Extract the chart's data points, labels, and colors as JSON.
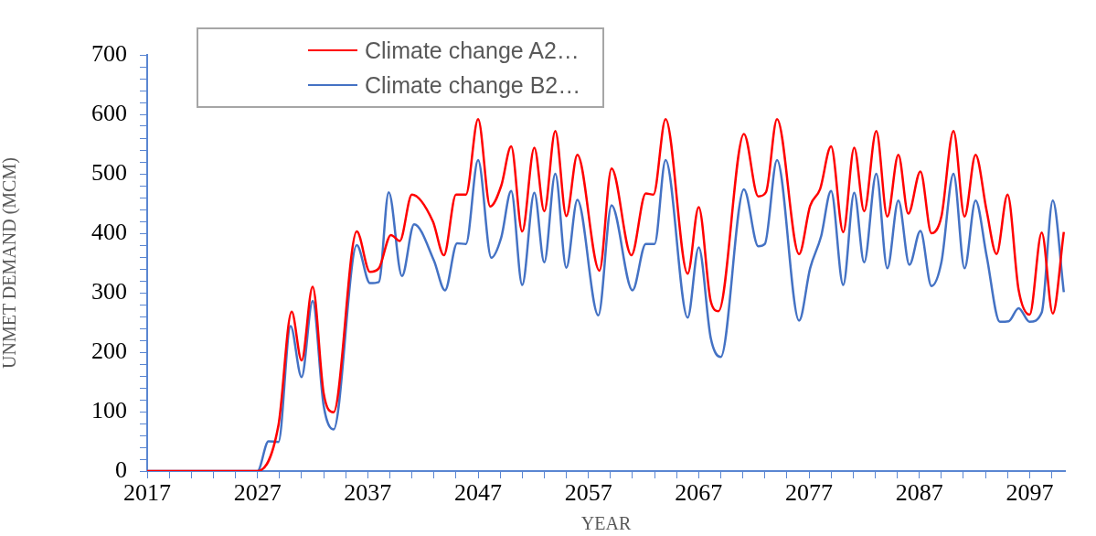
{
  "chart_data": {
    "type": "line",
    "xlabel": "YEAR",
    "ylabel": "UNMET DEMAND (MCM)",
    "xlim": [
      2017,
      2100.2
    ],
    "xticks": [
      2017,
      {
        "value": 2019,
        "label": null
      },
      {
        "value": 2021,
        "label": null
      },
      {
        "value": 2023,
        "label": null
      },
      {
        "value": 2025,
        "label": null
      },
      2027,
      {
        "value": 2029,
        "label": null
      },
      {
        "value": 2031,
        "label": null
      },
      {
        "value": 2033,
        "label": null
      },
      {
        "value": 2035,
        "label": null
      },
      2037,
      {
        "value": 2039,
        "label": null
      },
      {
        "value": 2041,
        "label": null
      },
      {
        "value": 2043,
        "label": null
      },
      {
        "value": 2045,
        "label": null
      },
      2047,
      {
        "value": 2049,
        "label": null
      },
      {
        "value": 2051,
        "label": null
      },
      {
        "value": 2053,
        "label": null
      },
      {
        "value": 2055,
        "label": null
      },
      2057,
      {
        "value": 2059,
        "label": null
      },
      {
        "value": 2061,
        "label": null
      },
      {
        "value": 2063,
        "label": null
      },
      {
        "value": 2065,
        "label": null
      },
      2067,
      {
        "value": 2069,
        "label": null
      },
      {
        "value": 2071,
        "label": null
      },
      {
        "value": 2073,
        "label": null
      },
      {
        "value": 2075,
        "label": null
      },
      2077,
      {
        "value": 2079,
        "label": null
      },
      {
        "value": 2081,
        "label": null
      },
      {
        "value": 2083,
        "label": null
      },
      {
        "value": 2085,
        "label": null
      },
      2087,
      {
        "value": 2089,
        "label": null
      },
      {
        "value": 2091,
        "label": null
      },
      {
        "value": 2093,
        "label": null
      },
      {
        "value": 2095,
        "label": null
      },
      2097,
      {
        "value": 2099,
        "label": null
      }
    ],
    "ylim": [
      0,
      700
    ],
    "yticks": [
      0,
      {
        "value": 20,
        "label": null
      },
      {
        "value": 40,
        "label": null
      },
      {
        "value": 60,
        "label": null
      },
      {
        "value": 80,
        "label": null
      },
      100,
      {
        "value": 120,
        "label": null
      },
      {
        "value": 140,
        "label": null
      },
      {
        "value": 160,
        "label": null
      },
      {
        "value": 180,
        "label": null
      },
      200,
      {
        "value": 220,
        "label": null
      },
      {
        "value": 240,
        "label": null
      },
      {
        "value": 260,
        "label": null
      },
      {
        "value": 280,
        "label": null
      },
      300,
      {
        "value": 320,
        "label": null
      },
      {
        "value": 340,
        "label": null
      },
      {
        "value": 360,
        "label": null
      },
      {
        "value": 380,
        "label": null
      },
      400,
      {
        "value": 420,
        "label": null
      },
      {
        "value": 440,
        "label": null
      },
      {
        "value": 460,
        "label": null
      },
      {
        "value": 480,
        "label": null
      },
      500,
      {
        "value": 520,
        "label": null
      },
      {
        "value": 540,
        "label": null
      },
      {
        "value": 560,
        "label": null
      },
      {
        "value": 580,
        "label": null
      },
      600,
      {
        "value": 620,
        "label": null
      },
      {
        "value": 640,
        "label": null
      },
      {
        "value": 660,
        "label": null
      },
      {
        "value": 680,
        "label": null
      },
      700
    ],
    "grid": false,
    "legend": "top left",
    "marker": "none",
    "line_style": "solid",
    "series": [
      {
        "name": "Climate change A2…",
        "color": "#ff0000",
        "x": [
          2017,
          2027,
          2028.9,
          2030.1,
          2031,
          2032,
          2033,
          2033.9,
          2036,
          2037.2,
          2038,
          2039.1,
          2039.9,
          2041,
          2042.9,
          2043.9,
          2045,
          2045.9,
          2047,
          2048.1,
          2049.1,
          2050,
          2051,
          2052.1,
          2053,
          2054,
          2055,
          2056,
          2058,
          2059.1,
          2060.9,
          2062.2,
          2062.9,
          2064,
          2066,
          2067,
          2068.1,
          2068.8,
          2071.1,
          2072.4,
          2073.1,
          2074.1,
          2076.1,
          2077.1,
          2078,
          2079,
          2080.1,
          2081.1,
          2082,
          2083.1,
          2084.1,
          2085.1,
          2086,
          2087.1,
          2088.1,
          2089,
          2090.1,
          2091.1,
          2092.1,
          2093.1,
          2094,
          2095,
          2096,
          2097,
          2098.1,
          2099.1,
          2100.1
        ],
        "values": [
          0,
          0,
          77,
          268,
          186,
          310,
          131,
          99,
          403,
          335,
          341,
          397,
          387,
          465,
          420,
          363,
          465,
          465,
          592,
          445,
          480,
          546,
          403,
          544,
          437,
          572,
          429,
          532,
          337,
          509,
          363,
          467,
          465,
          592,
          332,
          444,
          285,
          269,
          567,
          462,
          469,
          592,
          365,
          446,
          474,
          546,
          402,
          544,
          437,
          572,
          428,
          532,
          433,
          504,
          400,
          428,
          572,
          428,
          532,
          438,
          365,
          465,
          305,
          263,
          401,
          265,
          402
        ]
      },
      {
        "name": "Climate change B2…",
        "color": "#4472c4",
        "x": [
          2017,
          2027,
          2028,
          2028.9,
          2030,
          2031,
          2032,
          2033,
          2033.9,
          2036,
          2037.2,
          2038,
          2038.9,
          2040.1,
          2041.2,
          2043,
          2044,
          2045.1,
          2045.9,
          2047,
          2048.2,
          2049.1,
          2050,
          2051,
          2052.1,
          2053,
          2054,
          2055,
          2056,
          2057.9,
          2059.1,
          2061,
          2062.2,
          2063,
          2064,
          2066,
          2067,
          2068.1,
          2069,
          2071.1,
          2072.4,
          2073,
          2074.1,
          2076.1,
          2077.1,
          2078.1,
          2079,
          2080.1,
          2081.1,
          2082,
          2083.1,
          2084.1,
          2085.1,
          2086.1,
          2087.1,
          2088.1,
          2089,
          2090.1,
          2091.1,
          2092.1,
          2093.1,
          2094.3,
          2095.1,
          2096,
          2097,
          2098.1,
          2099.1,
          2100.1
        ],
        "values": [
          0,
          0,
          50,
          49,
          244,
          158,
          286,
          110,
          70,
          380,
          316,
          318,
          469,
          328,
          415,
          354,
          304,
          383,
          382,
          523,
          359,
          393,
          471,
          313,
          468,
          351,
          500,
          342,
          456,
          262,
          447,
          304,
          382,
          382,
          523,
          258,
          376,
          223,
          192,
          474,
          378,
          382,
          523,
          253,
          341,
          395,
          471,
          313,
          468,
          351,
          500,
          341,
          455,
          347,
          404,
          311,
          351,
          500,
          341,
          455,
          362,
          251,
          252,
          274,
          251,
          267,
          455,
          301
        ]
      }
    ]
  }
}
